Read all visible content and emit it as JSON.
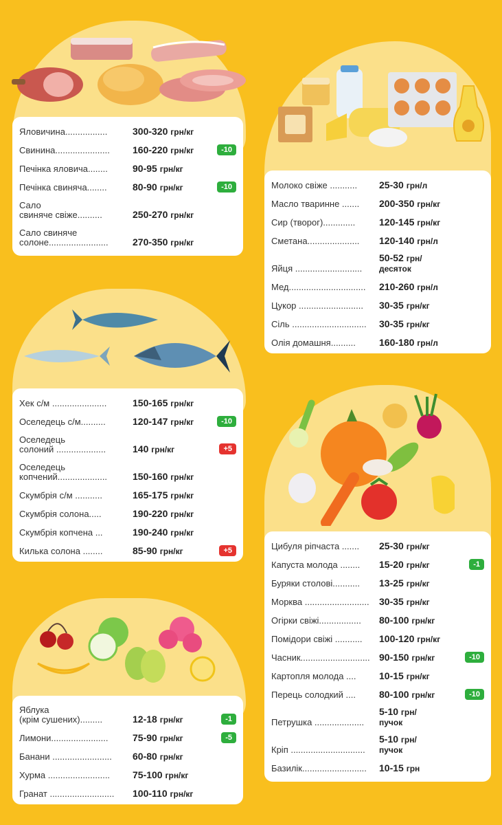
{
  "colors": {
    "background": "#f9bf1e",
    "blob": "#fbe08a",
    "card": "#ffffff",
    "decrease": "#2eae3d",
    "increase": "#e5332f"
  },
  "sections": {
    "meat": {
      "illustration": "meat-icon",
      "items": [
        {
          "name": "Яловичина.................",
          "price": "300-320",
          "unit": "грн/кг",
          "badge": ""
        },
        {
          "name": "Свинина......................",
          "price": "160-220",
          "unit": "грн/кг",
          "badge": "-10"
        },
        {
          "name": "Печінка яловича........",
          "price": "90-95",
          "unit": "грн/кг",
          "badge": ""
        },
        {
          "name": "Печінка свиняча........",
          "price": "80-90",
          "unit": "грн/кг",
          "badge": "-10"
        },
        {
          "name": "Сало\nсвиняче свіже..........",
          "price": "250-270",
          "unit": "грн/кг",
          "badge": ""
        },
        {
          "name": "Сало свиняче\nсолоне........................",
          "price": "270-350",
          "unit": "грн/кг",
          "badge": ""
        }
      ]
    },
    "dairy": {
      "illustration": "dairy-icon",
      "items": [
        {
          "name": "Молоко свіже ...........",
          "price": "25-30",
          "unit": "грн/л",
          "badge": ""
        },
        {
          "name": "Масло тваринне .......",
          "price": "200-350",
          "unit": "грн/кг",
          "badge": ""
        },
        {
          "name": "Сир (творог).............",
          "price": "120-145",
          "unit": "грн/кг",
          "badge": ""
        },
        {
          "name": "Сметана.....................",
          "price": "120-140",
          "unit": "грн/л",
          "badge": ""
        },
        {
          "name": "Яйця ...........................",
          "price": "50-52",
          "unit": "грн/\nдесяток",
          "badge": ""
        },
        {
          "name": "Мед...............................",
          "price": "210-260",
          "unit": "грн/л",
          "badge": ""
        },
        {
          "name": "Цукор ..........................",
          "price": "30-35",
          "unit": "грн/кг",
          "badge": ""
        },
        {
          "name": "Сіль ..............................",
          "price": "30-35",
          "unit": "грн/кг",
          "badge": ""
        },
        {
          "name": "Олія домашня..........",
          "price": "160-180",
          "unit": "грн/л",
          "badge": ""
        }
      ]
    },
    "fish": {
      "illustration": "fish-icon",
      "items": [
        {
          "name": "Хек с/м ......................",
          "price": "150-165",
          "unit": "грн/кг",
          "badge": ""
        },
        {
          "name": "Оселедець с/м..........",
          "price": "120-147",
          "unit": "грн/кг",
          "badge": "-10"
        },
        {
          "name": "Оселедець\nсолоний ....................",
          "price": "140",
          "unit": "грн/кг",
          "badge": "+5"
        },
        {
          "name": "Оселедець\nкопчений....................",
          "price": "150-160",
          "unit": "грн/кг",
          "badge": ""
        },
        {
          "name": "Скумбрія с/м ...........",
          "price": "165-175",
          "unit": "грн/кг",
          "badge": ""
        },
        {
          "name": "Скумбрія солона.....",
          "price": "190-220",
          "unit": "грн/кг",
          "badge": ""
        },
        {
          "name": "Скумбрія копчена ...",
          "price": "190-240",
          "unit": "грн/кг",
          "badge": ""
        },
        {
          "name": "Килька солона ........",
          "price": "85-90",
          "unit": "грн/кг",
          "badge": "+5"
        }
      ]
    },
    "vegetables": {
      "illustration": "vegetables-icon",
      "items": [
        {
          "name": "Цибуля ріпчаста .......",
          "price": "25-30",
          "unit": "грн/кг",
          "badge": ""
        },
        {
          "name": "Капуста молода ........",
          "price": "15-20",
          "unit": "грн/кг",
          "badge": "-1"
        },
        {
          "name": "Буряки столові...........",
          "price": "13-25",
          "unit": "грн/кг",
          "badge": ""
        },
        {
          "name": "Морква ..........................",
          "price": "30-35",
          "unit": "грн/кг",
          "badge": ""
        },
        {
          "name": "Огірки свіжі.................",
          "price": "80-100",
          "unit": "грн/кг",
          "badge": ""
        },
        {
          "name": "Помідори свіжі ...........",
          "price": "100-120",
          "unit": "грн/кг",
          "badge": ""
        },
        {
          "name": "Часник............................",
          "price": "90-150",
          "unit": "грн/кг",
          "badge": "-10"
        },
        {
          "name": "Картопля молода ....",
          "price": "10-15",
          "unit": "грн/кг",
          "badge": ""
        },
        {
          "name": "Перець солодкий ....",
          "price": "80-100",
          "unit": "грн/кг",
          "badge": "-10"
        },
        {
          "name": "Петрушка ....................",
          "price": "5-10",
          "unit": "грн/\nпучок",
          "badge": ""
        },
        {
          "name": "Кріп ..............................",
          "price": "5-10",
          "unit": "грн/\nпучок",
          "badge": ""
        },
        {
          "name": "Базилік..........................",
          "price": "10-15",
          "unit": "грн",
          "badge": ""
        }
      ]
    },
    "fruits": {
      "illustration": "fruits-icon",
      "items": [
        {
          "name": "Яблука\n(крім сушених).........",
          "price": "12-18",
          "unit": "грн/кг",
          "badge": "-1"
        },
        {
          "name": "Лимони.......................",
          "price": "75-90",
          "unit": "грн/кг",
          "badge": "-5"
        },
        {
          "name": "Банани ........................",
          "price": "60-80",
          "unit": "грн/кг",
          "badge": ""
        },
        {
          "name": "Хурма .........................",
          "price": "75-100",
          "unit": "грн/кг",
          "badge": ""
        },
        {
          "name": "Гранат ..........................",
          "price": "100-110",
          "unit": "грн/кг",
          "badge": ""
        }
      ]
    }
  }
}
